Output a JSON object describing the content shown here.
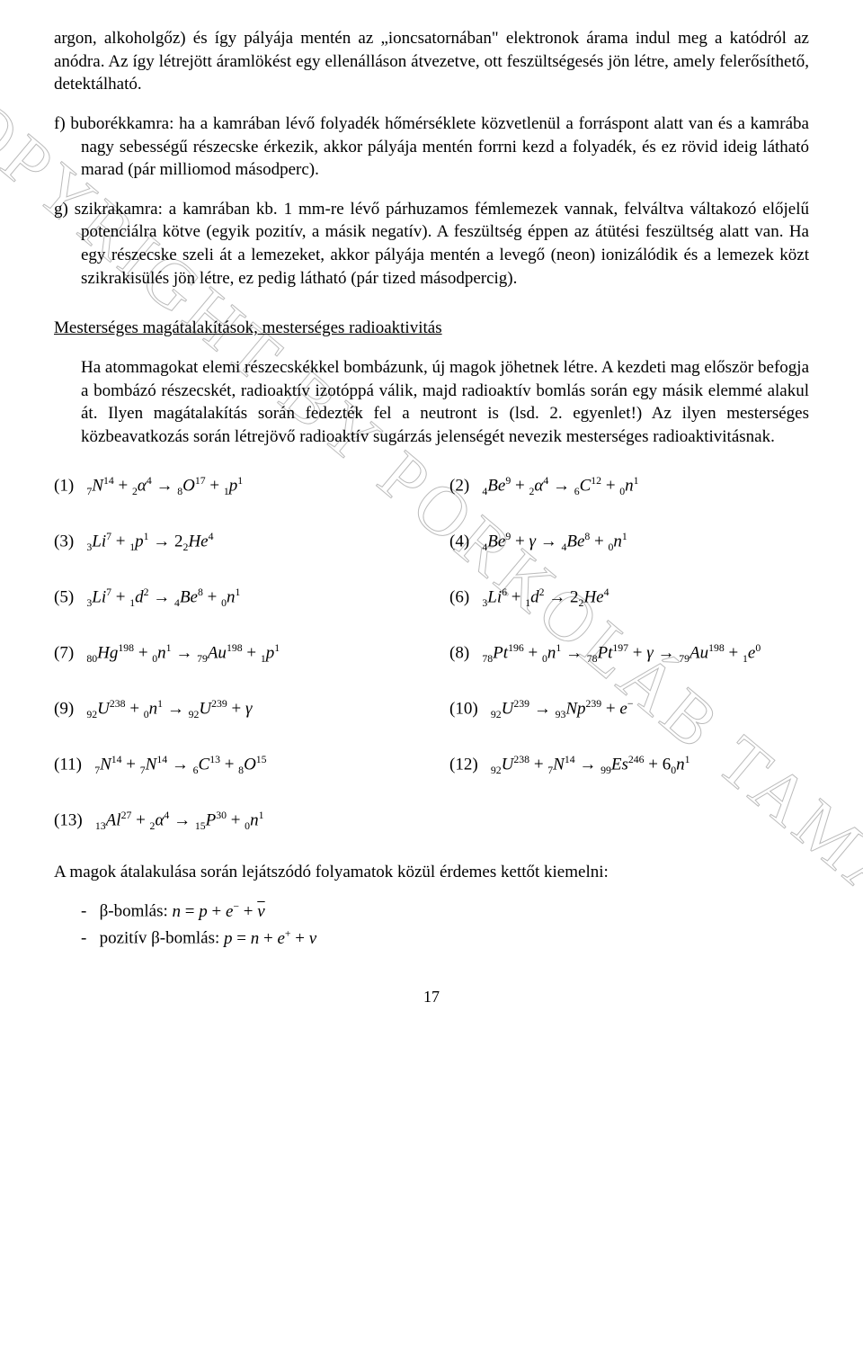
{
  "watermark": "COPYRIGHT BY PORKOLÁB TAMÁS",
  "intro_para": "argon, alkoholgőz) és így pályája mentén az „ioncsatornában\" elektronok árama indul meg a katódról az anódra. Az így létrejött áramlökést egy ellenálláson átvezetve, ott feszültségesés jön létre, amely felerősíthető, detektálható.",
  "item_f": "f) buborékkamra: ha a kamrában lévő folyadék hőmérséklete közvetlenül a forráspont alatt van és a kamrába nagy sebességű részecske érkezik, akkor pályája mentén forrni kezd a folyadék, és ez rövid ideig látható marad (pár milliomod másodperc).",
  "item_g": "g) szikrakamra: a kamrában kb. 1 mm-re lévő párhuzamos fémlemezek vannak, felváltva váltakozó előjelű potenciálra kötve (egyik pozitív, a másik negatív). A feszültség éppen az átütési feszültség alatt van. Ha egy részecske szeli át a lemezeket, akkor pályája mentén a levegő (neon) ionizálódik és a lemezek közt szikrakisülés jön létre, ez pedig látható (pár tized másodpercig).",
  "section_title": "Mesterséges magátalakítások, mesterséges radioaktivitás",
  "section_para": "Ha atommagokat elemi részecskékkel bombázunk, új magok jöhetnek létre. A kezdeti mag először befogja a bombázó részecskét, radioaktív izotóppá válik, majd radioaktív bomlás során egy másik elemmé alakul át. Ilyen magátalakítás során fedezték fel a neutront is (lsd. 2. egyenlet!) Az ilyen mesterséges közbeavatkozás során létrejövő radioaktív sugárzás jelenségét nevezik mesterséges radioaktivitásnak.",
  "equations": [
    {
      "n": "1",
      "lhs": [
        {
          "z": "7",
          "a": "14",
          "s": "N"
        },
        {
          "op": "+"
        },
        {
          "z": "2",
          "a": "4",
          "s": "α"
        }
      ],
      "arrow": "→",
      "rhs": [
        {
          "z": "8",
          "a": "17",
          "s": "O"
        },
        {
          "op": "+"
        },
        {
          "z": "1",
          "a": "1",
          "s": "p"
        }
      ]
    },
    {
      "n": "2",
      "lhs": [
        {
          "z": "4",
          "a": "9",
          "s": "Be"
        },
        {
          "op": "+"
        },
        {
          "z": "2",
          "a": "4",
          "s": "α"
        }
      ],
      "arrow": "→",
      "rhs": [
        {
          "z": "6",
          "a": "12",
          "s": "C"
        },
        {
          "op": "+"
        },
        {
          "z": "0",
          "a": "1",
          "s": "n"
        }
      ]
    },
    {
      "n": "3",
      "lhs": [
        {
          "z": "3",
          "a": "7",
          "s": "Li"
        },
        {
          "op": "+"
        },
        {
          "z": "1",
          "a": "1",
          "s": "p"
        }
      ],
      "arrow": "→",
      "rhs": [
        {
          "coef": "2"
        },
        {
          "z": "2",
          "a": "4",
          "s": "He"
        }
      ]
    },
    {
      "n": "4",
      "lhs": [
        {
          "z": "4",
          "a": "9",
          "s": "Be"
        },
        {
          "op": "+"
        },
        {
          "sym": "γ"
        }
      ],
      "arrow": "→",
      "rhs": [
        {
          "z": "4",
          "a": "8",
          "s": "Be"
        },
        {
          "op": "+"
        },
        {
          "z": "0",
          "a": "1",
          "s": "n"
        }
      ]
    },
    {
      "n": "5",
      "lhs": [
        {
          "z": "3",
          "a": "7",
          "s": "Li"
        },
        {
          "op": "+"
        },
        {
          "z": "1",
          "a": "2",
          "s": "d"
        }
      ],
      "arrow": "→",
      "rhs": [
        {
          "z": "4",
          "a": "8",
          "s": "Be"
        },
        {
          "op": "+"
        },
        {
          "z": "0",
          "a": "1",
          "s": "n"
        }
      ]
    },
    {
      "n": "6",
      "lhs": [
        {
          "z": "3",
          "a": "6",
          "s": "Li"
        },
        {
          "op": "+"
        },
        {
          "z": "1",
          "a": "2",
          "s": "d"
        }
      ],
      "arrow": "→",
      "rhs": [
        {
          "coef": "2"
        },
        {
          "z": "2",
          "a": "4",
          "s": "He"
        }
      ]
    },
    {
      "n": "7",
      "lhs": [
        {
          "z": "80",
          "a": "198",
          "s": "Hg"
        },
        {
          "op": "+"
        },
        {
          "z": "0",
          "a": "1",
          "s": "n"
        }
      ],
      "arrow": "→",
      "rhs": [
        {
          "z": "79",
          "a": "198",
          "s": "Au"
        },
        {
          "op": "+"
        },
        {
          "z": "1",
          "a": "1",
          "s": "p"
        }
      ]
    },
    {
      "n": "8",
      "lhs": [
        {
          "z": "78",
          "a": "196",
          "s": "Pt"
        },
        {
          "op": "+"
        },
        {
          "z": "0",
          "a": "1",
          "s": "n"
        }
      ],
      "arrow": "→",
      "rhs": [
        {
          "z": "78",
          "a": "197",
          "s": "Pt"
        },
        {
          "op": "+"
        },
        {
          "sym": "γ"
        },
        {
          "op": "→"
        },
        {
          "z": "79",
          "a": "198",
          "s": "Au"
        },
        {
          "op": "+"
        },
        {
          "z": "1",
          "a": "0",
          "s": "e"
        }
      ]
    },
    {
      "n": "9",
      "lhs": [
        {
          "z": "92",
          "a": "238",
          "s": "U"
        },
        {
          "op": "+"
        },
        {
          "z": "0",
          "a": "1",
          "s": "n"
        }
      ],
      "arrow": "→",
      "rhs": [
        {
          "z": "92",
          "a": "239",
          "s": "U"
        },
        {
          "op": "+"
        },
        {
          "sym": "γ"
        }
      ]
    },
    {
      "n": "10",
      "lhs": [
        {
          "z": "92",
          "a": "239",
          "s": "U"
        }
      ],
      "arrow": "→",
      "rhs": [
        {
          "z": "93",
          "a": "239",
          "s": "Np"
        },
        {
          "op": "+"
        },
        {
          "sym": "e",
          "sup": "−"
        }
      ]
    },
    {
      "n": "11",
      "lhs": [
        {
          "z": "7",
          "a": "14",
          "s": "N"
        },
        {
          "op": "+"
        },
        {
          "z": "7",
          "a": "14",
          "s": "N"
        }
      ],
      "arrow": "→",
      "rhs": [
        {
          "z": "6",
          "a": "13",
          "s": "C"
        },
        {
          "op": "+"
        },
        {
          "z": "8",
          "a": "15",
          "s": "O"
        }
      ]
    },
    {
      "n": "12",
      "lhs": [
        {
          "z": "92",
          "a": "238",
          "s": "U"
        },
        {
          "op": "+"
        },
        {
          "z": "7",
          "a": "14",
          "s": "N"
        }
      ],
      "arrow": "→",
      "rhs": [
        {
          "z": "99",
          "a": "246",
          "s": "Es"
        },
        {
          "op": "+"
        },
        {
          "coef": "6"
        },
        {
          "z": "0",
          "a": "1",
          "s": "n"
        }
      ]
    },
    {
      "n": "13",
      "lhs": [
        {
          "z": "13",
          "a": "27",
          "s": "Al"
        },
        {
          "op": "+"
        },
        {
          "z": "2",
          "a": "4",
          "s": "α"
        }
      ],
      "arrow": "→",
      "rhs": [
        {
          "z": "15",
          "a": "30",
          "s": "P"
        },
        {
          "op": "+"
        },
        {
          "z": "0",
          "a": "1",
          "s": "n"
        }
      ],
      "full": true
    }
  ],
  "closing_para": "A magok átalakulása során lejátszódó folyamatok közül érdemes kettőt kiemelni:",
  "bullet1_label": "β-bomlás: ",
  "bullet1_eq_parts": [
    "n",
    " = ",
    "p",
    " + ",
    "e",
    "−",
    " + ",
    "ν̄"
  ],
  "bullet2_label": "pozitív β-bomlás: ",
  "bullet2_eq_parts": [
    "p",
    " = ",
    "n",
    " + ",
    "e",
    "+",
    " + ",
    "ν"
  ],
  "page_number": "17"
}
